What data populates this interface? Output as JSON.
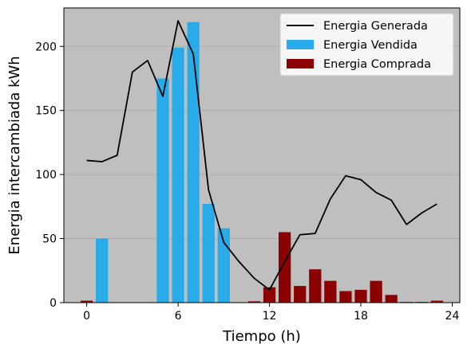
{
  "chart_data": {
    "type": "bar",
    "xlabel": "Tiempo (h)",
    "ylabel": "Energia intercambiada kWh",
    "xlim": [
      -1.5,
      24.5
    ],
    "ylim": [
      0,
      230
    ],
    "xticks": [
      0,
      6,
      12,
      18,
      24
    ],
    "yticks": [
      0,
      50,
      100,
      150,
      200
    ],
    "grid": "horizontal",
    "background": "#bfbfbf",
    "legend_position": "top-right",
    "x": [
      0,
      1,
      2,
      3,
      4,
      5,
      6,
      7,
      8,
      9,
      10,
      11,
      12,
      13,
      14,
      15,
      16,
      17,
      18,
      19,
      20,
      21,
      22,
      23
    ],
    "series": [
      {
        "name": "Energia Generada",
        "type": "line",
        "color": "#000000",
        "values": [
          111,
          110,
          115,
          180,
          189,
          161,
          220,
          194,
          88,
          47,
          32,
          19,
          10,
          32,
          53,
          54,
          81,
          99,
          96,
          86,
          80,
          61,
          70,
          77
        ]
      },
      {
        "name": "Energia Vendida",
        "type": "bar",
        "color": "#29abe9",
        "values": [
          0,
          50,
          0,
          0,
          0,
          175,
          199,
          219,
          77,
          58,
          0,
          0,
          0,
          0,
          0,
          0,
          0,
          0,
          0,
          0,
          0,
          0,
          0,
          0
        ]
      },
      {
        "name": "Energia Comprada",
        "type": "bar",
        "color": "#8b0000",
        "values": [
          1.5,
          0,
          0,
          0,
          0,
          0,
          0,
          0,
          0,
          0,
          0,
          1,
          12,
          55,
          13,
          26,
          17,
          9,
          10,
          17,
          6,
          0.5,
          0.5,
          1.5
        ]
      }
    ]
  }
}
